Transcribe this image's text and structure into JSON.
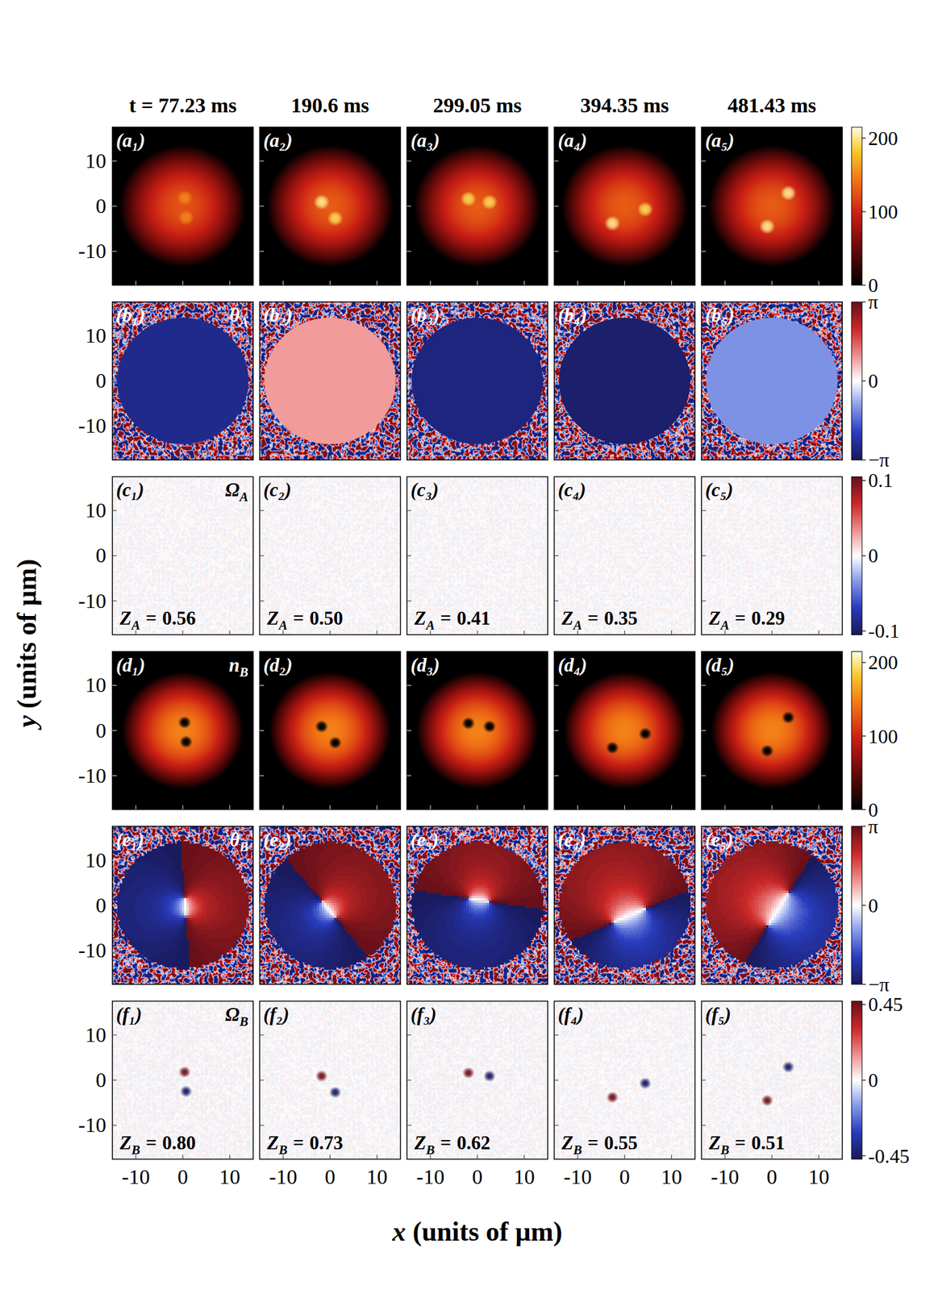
{
  "figure": {
    "time_labels": [
      "t = 77.23 ms",
      "190.6 ms",
      "299.05 ms",
      "394.35 ms",
      "481.43 ms"
    ],
    "x_label": "x (units of μm)",
    "y_label": "y (units of μm)"
  },
  "chart_data": [
    {
      "type": "heatmap",
      "color": "hot",
      "xlim": [
        -15,
        15
      ],
      "ylim": [
        -17.5,
        17.5
      ],
      "xticks": [
        -10,
        0,
        10
      ],
      "yticks": [
        -10,
        0,
        10
      ],
      "colorbar": {
        "range": [
          0,
          215
        ],
        "ticks": [
          0,
          100,
          200
        ]
      },
      "panels": [
        {
          "label": "(a₁)",
          "peak": 125,
          "radius": 13.5,
          "spots": [
            {
              "x": 0.4,
              "y": 1.8,
              "n": 150
            },
            {
              "x": 0.7,
              "y": -2.5,
              "n": 150
            }
          ]
        },
        {
          "label": "(a₂)",
          "peak": 130,
          "radius": 13.5,
          "spots": [
            {
              "x": -1.8,
              "y": 0.9,
              "n": 200
            },
            {
              "x": 1.1,
              "y": -2.7,
              "n": 190
            }
          ]
        },
        {
          "label": "(a₃)",
          "peak": 130,
          "radius": 13.5,
          "spots": [
            {
              "x": -1.9,
              "y": 1.6,
              "n": 190
            },
            {
              "x": 2.6,
              "y": 0.9,
              "n": 190
            }
          ]
        },
        {
          "label": "(a₄)",
          "peak": 130,
          "radius": 13.5,
          "spots": [
            {
              "x": -2.6,
              "y": -3.8,
              "n": 200
            },
            {
              "x": 4.4,
              "y": -0.7,
              "n": 190
            }
          ]
        },
        {
          "label": "(a₅)",
          "peak": 130,
          "radius": 13.5,
          "spots": [
            {
              "x": -1,
              "y": -4.5,
              "n": 200
            },
            {
              "x": 3.5,
              "y": 2.9,
              "n": 200
            }
          ]
        }
      ]
    },
    {
      "type": "heatmap",
      "color": "diverging",
      "xlim": [
        -15,
        15
      ],
      "ylim": [
        -17.5,
        17.5
      ],
      "xticks": [
        -10,
        0,
        10
      ],
      "yticks": [
        -10,
        0,
        10
      ],
      "quantity": {
        "text": "θ",
        "sub": "A"
      },
      "colorbar": {
        "range": [
          -3.1416,
          3.1416
        ],
        "ticks": [
          {
            "value": 3.1416,
            "label": "π"
          },
          0,
          {
            "value": -3.1416,
            "label": "−π"
          }
        ]
      },
      "panels": [
        {
          "label": "(b₁)",
          "phase": -2.6,
          "radius": 14
        },
        {
          "label": "(b₂)",
          "phase": 0.9,
          "radius": 14
        },
        {
          "label": "(b₃)",
          "phase": -2.75,
          "radius": 14
        },
        {
          "label": "(b₄)",
          "phase": -2.95,
          "radius": 14
        },
        {
          "label": "(b₅)",
          "phase": -1.1,
          "radius": 14
        }
      ]
    },
    {
      "type": "heatmap",
      "color": "diverging",
      "xlim": [
        -15,
        15
      ],
      "ylim": [
        -17.5,
        17.5
      ],
      "xticks": [
        -10,
        0,
        10
      ],
      "yticks": [
        -10,
        0,
        10
      ],
      "quantity": {
        "text": "Ω",
        "sub": "A"
      },
      "z_symbol": {
        "text": "Z",
        "sub": "A"
      },
      "z_relation": "=",
      "colorbar": {
        "range": [
          -0.105,
          0.105
        ],
        "ticks": [
          0.1,
          0,
          -0.1
        ]
      },
      "panels": [
        {
          "label": "(c₁)",
          "Z": {
            "value": 0.56,
            "label": "0.56"
          }
        },
        {
          "label": "(c₂)",
          "Z": {
            "value": 0.5,
            "label": "0.50"
          }
        },
        {
          "label": "(c₃)",
          "Z": {
            "value": 0.41,
            "label": "0.41"
          }
        },
        {
          "label": "(c₄)",
          "Z": {
            "value": 0.35,
            "label": "0.35"
          }
        },
        {
          "label": "(c₅)",
          "Z": {
            "value": 0.29,
            "label": "0.29"
          }
        }
      ]
    },
    {
      "type": "heatmap",
      "color": "hot",
      "xlim": [
        -15,
        15
      ],
      "ylim": [
        -17.5,
        17.5
      ],
      "xticks": [
        -10,
        0,
        10
      ],
      "yticks": [
        -10,
        0,
        10
      ],
      "quantity": {
        "text": "n",
        "sub": "B"
      },
      "colorbar": {
        "range": [
          0,
          215
        ],
        "ticks": [
          0,
          100,
          200
        ]
      },
      "panels": [
        {
          "label": "(d₁)",
          "peak": 150,
          "radius": 13,
          "cores": [
            {
              "x": 0.4,
              "y": 1.8
            },
            {
              "x": 0.7,
              "y": -2.5
            }
          ]
        },
        {
          "label": "(d₂)",
          "peak": 150,
          "radius": 13,
          "cores": [
            {
              "x": -1.8,
              "y": 0.9
            },
            {
              "x": 1.1,
              "y": -2.7
            }
          ]
        },
        {
          "label": "(d₃)",
          "peak": 150,
          "radius": 13,
          "cores": [
            {
              "x": -1.9,
              "y": 1.6
            },
            {
              "x": 2.6,
              "y": 0.9
            }
          ]
        },
        {
          "label": "(d₄)",
          "peak": 150,
          "radius": 13,
          "cores": [
            {
              "x": -2.6,
              "y": -3.8
            },
            {
              "x": 4.4,
              "y": -0.7
            }
          ]
        },
        {
          "label": "(d₅)",
          "peak": 150,
          "radius": 13,
          "cores": [
            {
              "x": -1,
              "y": -4.5
            },
            {
              "x": 3.5,
              "y": 2.9
            }
          ]
        }
      ]
    },
    {
      "type": "heatmap",
      "color": "diverging",
      "xlim": [
        -15,
        15
      ],
      "ylim": [
        -17.5,
        17.5
      ],
      "xticks": [
        -10,
        0,
        10
      ],
      "yticks": [
        -10,
        0,
        10
      ],
      "quantity": {
        "text": "θ",
        "sub": "B"
      },
      "colorbar": {
        "range": [
          -3.1416,
          3.1416
        ],
        "ticks": [
          {
            "value": 3.1416,
            "label": "π"
          },
          0,
          {
            "value": -3.1416,
            "label": "−π"
          }
        ]
      },
      "panels": [
        {
          "label": "(e₁)",
          "phase_offset": 3.1416,
          "radius": 14,
          "vortices": [
            {
              "x": 0.4,
              "y": 1.8,
              "charge": 1
            },
            {
              "x": 0.7,
              "y": -2.5,
              "charge": -1
            }
          ]
        },
        {
          "label": "(e₂)",
          "phase_offset": 3.1416,
          "radius": 14,
          "vortices": [
            {
              "x": -1.8,
              "y": 0.9,
              "charge": 1
            },
            {
              "x": 1.1,
              "y": -2.7,
              "charge": -1
            }
          ]
        },
        {
          "label": "(e₃)",
          "phase_offset": 3.1416,
          "radius": 14,
          "vortices": [
            {
              "x": -1.9,
              "y": 1.6,
              "charge": 1
            },
            {
              "x": 2.6,
              "y": 0.9,
              "charge": -1
            }
          ]
        },
        {
          "label": "(e₄)",
          "phase_offset": 3.1416,
          "radius": 14,
          "vortices": [
            {
              "x": -2.6,
              "y": -3.8,
              "charge": 1
            },
            {
              "x": 4.4,
              "y": -0.7,
              "charge": -1
            }
          ]
        },
        {
          "label": "(e₅)",
          "phase_offset": 3.1416,
          "radius": 14,
          "vortices": [
            {
              "x": -1,
              "y": -4.5,
              "charge": 1
            },
            {
              "x": 3.5,
              "y": 2.9,
              "charge": -1
            }
          ]
        }
      ]
    },
    {
      "type": "heatmap",
      "color": "diverging",
      "xlim": [
        -15,
        15
      ],
      "ylim": [
        -17.5,
        17.5
      ],
      "xticks": [
        -10,
        0,
        10
      ],
      "yticks": [
        -10,
        0,
        10
      ],
      "quantity": {
        "text": "Ω",
        "sub": "B"
      },
      "z_symbol": {
        "text": "Z",
        "sub": "B"
      },
      "z_relation": "=",
      "colorbar": {
        "range": [
          -0.47,
          0.47
        ],
        "ticks": [
          0.45,
          0,
          -0.45
        ]
      },
      "panels": [
        {
          "label": "(f₁)",
          "Z": {
            "value": 0.8,
            "label": "0.80"
          },
          "vortices": [
            {
              "x": 0.4,
              "y": 1.8,
              "omega": 0.45
            },
            {
              "x": 0.7,
              "y": -2.5,
              "omega": -0.45
            }
          ]
        },
        {
          "label": "(f₂)",
          "Z": {
            "value": 0.73,
            "label": "0.73"
          },
          "vortices": [
            {
              "x": -1.8,
              "y": 0.9,
              "omega": 0.45
            },
            {
              "x": 1.1,
              "y": -2.7,
              "omega": -0.45
            }
          ]
        },
        {
          "label": "(f₃)",
          "Z": {
            "value": 0.62,
            "label": "0.62"
          },
          "vortices": [
            {
              "x": -1.9,
              "y": 1.6,
              "omega": 0.45
            },
            {
              "x": 2.6,
              "y": 0.9,
              "omega": -0.45
            }
          ]
        },
        {
          "label": "(f₄)",
          "Z": {
            "value": 0.55,
            "label": "0.55"
          },
          "vortices": [
            {
              "x": -2.6,
              "y": -3.8,
              "omega": 0.45
            },
            {
              "x": 4.4,
              "y": -0.7,
              "omega": -0.45
            }
          ]
        },
        {
          "label": "(f₅)",
          "Z": {
            "value": 0.51,
            "label": "0.51"
          },
          "vortices": [
            {
              "x": -1,
              "y": -4.5,
              "omega": 0.45
            },
            {
              "x": 3.5,
              "y": 2.9,
              "omega": -0.45
            }
          ]
        }
      ]
    }
  ]
}
